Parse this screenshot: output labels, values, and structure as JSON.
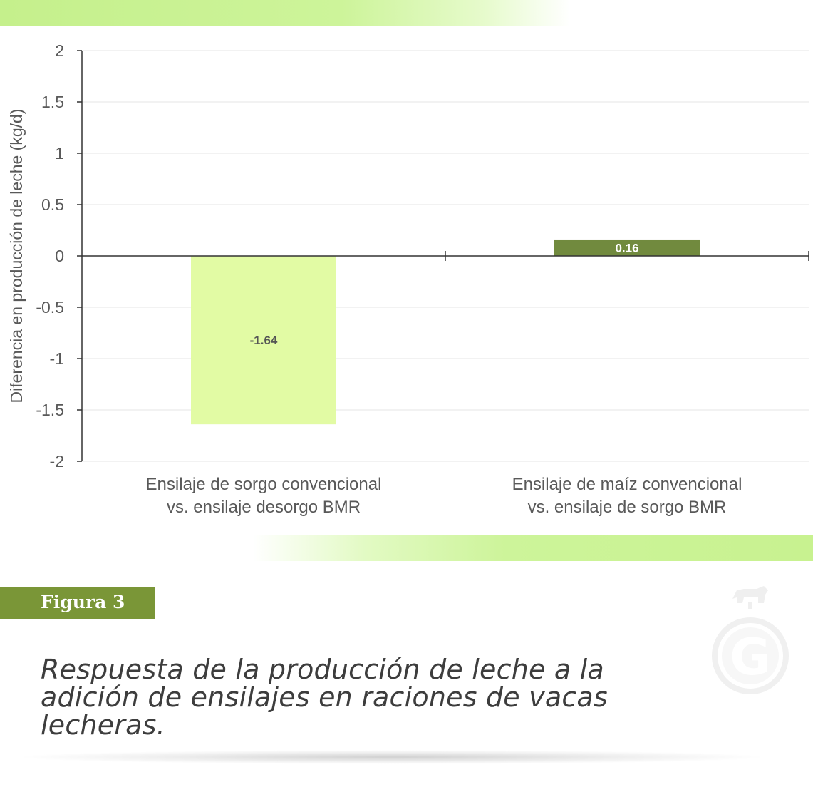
{
  "chart_data": {
    "type": "bar",
    "categories": [
      [
        "Ensilaje de sorgo convencional",
        "vs. ensilaje desorgo BMR"
      ],
      [
        "Ensilaje de maíz convencional",
        "vs. ensilaje de sorgo BMR"
      ]
    ],
    "values": [
      -1.64,
      0.16
    ],
    "data_labels": [
      "-1.64",
      "0.16"
    ],
    "bar_colors": [
      "#e2fba4",
      "#718a3e"
    ],
    "label_colors": [
      "#555555",
      "#ffffff"
    ],
    "ylabel": "Diferencia en producción de leche (kg/d)",
    "ylim": [
      -2,
      2
    ],
    "yticks": [
      2,
      1.5,
      1,
      0.5,
      0,
      -0.5,
      -1,
      -1.5,
      -2
    ],
    "ytick_labels": [
      "2",
      "1.5",
      "1",
      "0.5",
      "0",
      "-0.5",
      "-1",
      "-1.5",
      "-2"
    ],
    "grid": true
  },
  "figure": {
    "tag": "Figura 3",
    "caption_lines": [
      "Respuesta de la producción de leche a la",
      "adición de ensilajes en raciones de vacas",
      "lecheras."
    ]
  },
  "colors": {
    "band": "#cdf49a",
    "tag_bg": "#7a9637",
    "caption": "#3d3d3d"
  },
  "watermark": {
    "icon": "logo-g-icon",
    "letter": "G"
  }
}
